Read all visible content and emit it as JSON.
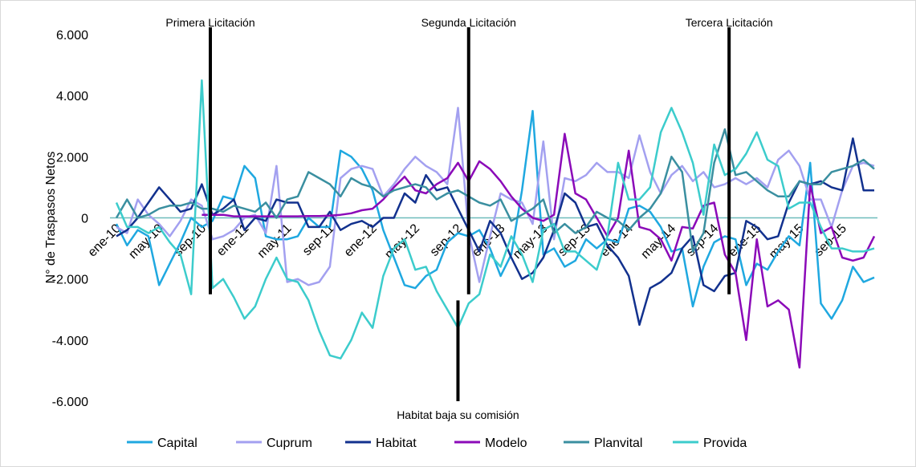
{
  "chart_data": {
    "type": "line",
    "y_label": "N° de Traspasos Netos",
    "categories": [
      "ene-10",
      null,
      null,
      null,
      "may-10",
      null,
      null,
      null,
      "sep-10",
      null,
      null,
      null,
      "ene-11",
      null,
      null,
      null,
      "may-11",
      null,
      null,
      null,
      "sep-11",
      null,
      null,
      null,
      "ene-12",
      null,
      null,
      null,
      "may-12",
      null,
      null,
      null,
      "sep-12",
      null,
      null,
      null,
      "ene-13",
      null,
      null,
      null,
      "may-13",
      null,
      null,
      null,
      "sep-13",
      null,
      null,
      null,
      "ene-14",
      null,
      null,
      null,
      "may-14",
      null,
      null,
      null,
      "sep-14",
      null,
      null,
      null,
      "ene-15",
      null,
      null,
      null,
      "may-15",
      null,
      null,
      null,
      "sep-15",
      null,
      null,
      null
    ],
    "ylim": [
      -6000,
      6000
    ],
    "yticks": [
      {
        "value": -6000,
        "label": "-6.000"
      },
      {
        "value": -4000,
        "label": "-4.000"
      },
      {
        "value": -2000,
        "label": "-2.000"
      },
      0,
      {
        "value": 2000,
        "label": "2.000"
      },
      {
        "value": 4000,
        "label": "4.000"
      },
      {
        "value": 6000,
        "label": "6.000"
      }
    ],
    "events": [
      {
        "label": "Primera Licitación",
        "at": 8.8,
        "position": "top"
      },
      {
        "label": "Segunda Licitación",
        "at": 33,
        "position": "top"
      },
      {
        "label": "Tercera Licitación",
        "at": 57.4,
        "position": "top"
      },
      {
        "label": "Habitat baja su comisión",
        "at": 32,
        "position": "bottom"
      }
    ],
    "legend": "bottom",
    "series": [
      {
        "name": "Capital",
        "color": "#1fa8e0",
        "values": [
          -200,
          -900,
          -400,
          -600,
          -2200,
          -1500,
          -800,
          0,
          -300,
          -100,
          700,
          600,
          1700,
          1300,
          -600,
          -700,
          -700,
          -600,
          0,
          -300,
          -300,
          2200,
          2000,
          1600,
          900,
          -400,
          -1300,
          -2200,
          -2300,
          -1900,
          -1700,
          -800,
          -500,
          -600,
          -400,
          -1000,
          -1900,
          -1200,
          900,
          3500,
          -1200,
          -1000,
          -1600,
          -1400,
          -700,
          -1000,
          -700,
          -800,
          300,
          400,
          200,
          -300,
          -1100,
          -1000,
          -2900,
          -1600,
          -800,
          -600,
          -700,
          -2200,
          -1500,
          -1700,
          -1100,
          -600,
          -900,
          1800,
          -2800,
          -3300,
          -2700,
          -1600,
          -2100,
          -1950
        ]
      },
      {
        "name": "Cuprum",
        "color": "#a3a0f0",
        "values": [
          -300,
          -500,
          600,
          100,
          -200,
          -600,
          -100,
          600,
          400,
          -700,
          -600,
          -400,
          0,
          100,
          -500,
          1700,
          -2100,
          -2000,
          -2200,
          -2100,
          -1600,
          1300,
          1600,
          1700,
          1600,
          700,
          1100,
          1600,
          2000,
          1700,
          1500,
          1100,
          3600,
          -500,
          -2100,
          -600,
          800,
          600,
          500,
          -200,
          2500,
          -700,
          1300,
          1200,
          1400,
          1800,
          1500,
          1500,
          1300,
          2700,
          1500,
          800,
          1400,
          1700,
          1200,
          1500,
          1000,
          1100,
          1300,
          1100,
          1300,
          1000,
          1900,
          2200,
          1700,
          600,
          600,
          -300,
          900,
          1700,
          1800,
          1700
        ]
      },
      {
        "name": "Habitat",
        "color": "#12318e",
        "values": [
          -600,
          -400,
          0,
          500,
          1000,
          600,
          200,
          300,
          1100,
          100,
          300,
          600,
          -400,
          0,
          -100,
          600,
          500,
          500,
          -300,
          -300,
          200,
          -400,
          -200,
          -100,
          -300,
          0,
          0,
          800,
          500,
          1400,
          900,
          1000,
          300,
          -400,
          -1100,
          -100,
          -500,
          -1300,
          -2000,
          -1800,
          -1300,
          -400,
          800,
          500,
          -300,
          -200,
          -900,
          -1300,
          -1900,
          -3500,
          -2300,
          -2100,
          -1800,
          -1000,
          -600,
          -2200,
          -2400,
          -1900,
          -1800,
          -100,
          -300,
          -700,
          -600,
          500,
          1200,
          1100,
          1200,
          1000,
          900,
          2600,
          900,
          900
        ]
      },
      {
        "name": "Modelo",
        "color": "#8b0ab8",
        "values": [
          null,
          null,
          null,
          null,
          null,
          null,
          null,
          null,
          100,
          100,
          100,
          50,
          50,
          50,
          50,
          50,
          50,
          50,
          60,
          60,
          70,
          100,
          150,
          250,
          300,
          600,
          1000,
          1350,
          900,
          800,
          1100,
          1300,
          1800,
          1200,
          1850,
          1600,
          1200,
          700,
          300,
          0,
          -100,
          100,
          2750,
          800,
          600,
          0,
          -600,
          0,
          2200,
          -300,
          -400,
          -700,
          -1400,
          -300,
          -350,
          400,
          500,
          -1200,
          -1800,
          -4000,
          -700,
          -2900,
          -2700,
          -3000,
          -4900,
          1100,
          -500,
          -300,
          -1300,
          -1400,
          -1300,
          -600
        ]
      },
      {
        "name": "Planvital",
        "color": "#3a8fa0",
        "values": [
          0,
          600,
          0,
          100,
          300,
          400,
          400,
          500,
          300,
          300,
          200,
          400,
          300,
          200,
          500,
          0,
          600,
          700,
          1500,
          1300,
          1100,
          700,
          1300,
          1100,
          1000,
          700,
          900,
          1000,
          1100,
          1000,
          600,
          800,
          900,
          700,
          500,
          400,
          600,
          -100,
          100,
          300,
          600,
          -500,
          -200,
          -500,
          -300,
          200,
          0,
          -100,
          -400,
          0,
          300,
          800,
          2000,
          1500,
          -1100,
          -500,
          1800,
          2900,
          1400,
          1500,
          1200,
          900,
          700,
          700,
          1200,
          1100,
          1100,
          1500,
          1600,
          1700,
          1900,
          1600
        ]
      },
      {
        "name": "Provida",
        "color": "#3ccccc",
        "values": [
          500,
          -300,
          -300,
          -500,
          -300,
          -800,
          -1200,
          -2500,
          4500,
          -2300,
          -2000,
          -2600,
          -3300,
          -2900,
          -2000,
          -1300,
          -2000,
          -2100,
          -2700,
          -3700,
          -4500,
          -4600,
          -4000,
          -3100,
          -3600,
          -1900,
          -1000,
          -700,
          -1700,
          -1600,
          -2400,
          -3000,
          -3600,
          -2800,
          -2500,
          -1200,
          -1600,
          -600,
          -1200,
          -2100,
          -400,
          -200,
          -1100,
          -1100,
          -1400,
          -1700,
          -600,
          1800,
          600,
          600,
          1000,
          2800,
          3600,
          2800,
          1800,
          100,
          2400,
          1400,
          1600,
          2100,
          2800,
          1900,
          1700,
          300,
          500,
          500,
          -300,
          -1000,
          -1000,
          -1100,
          -1100,
          -1000
        ]
      }
    ]
  }
}
